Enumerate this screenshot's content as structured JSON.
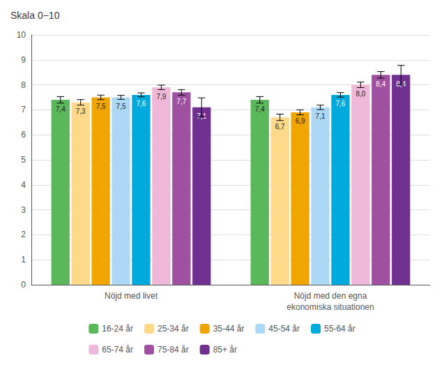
{
  "chart_data": {
    "type": "bar",
    "title": "Skala 0−10",
    "categories": [
      "Nöjd med livet",
      "Nöjd med den egna\nekonomiska situationen"
    ],
    "series": [
      {
        "name": "16-24 år",
        "color": "#5ab85a",
        "values": [
          7.4,
          7.4
        ],
        "errors": [
          0.13,
          0.13
        ],
        "value_labels": [
          "7,4",
          "7,4"
        ]
      },
      {
        "name": "25-34 år",
        "color": "#ffd98a",
        "values": [
          7.3,
          6.7
        ],
        "errors": [
          0.11,
          0.13
        ],
        "value_labels": [
          "7,3",
          "6,7"
        ]
      },
      {
        "name": "35-44 år",
        "color": "#f0a500",
        "values": [
          7.5,
          6.9
        ],
        "errors": [
          0.09,
          0.1
        ],
        "value_labels": [
          "7,5",
          "6,9"
        ]
      },
      {
        "name": "45-54 år",
        "color": "#add8f5",
        "values": [
          7.5,
          7.1
        ],
        "errors": [
          0.08,
          0.09
        ],
        "value_labels": [
          "7,5",
          "7,1"
        ]
      },
      {
        "name": "55-64 år",
        "color": "#00aadd",
        "values": [
          7.6,
          7.6
        ],
        "errors": [
          0.08,
          0.09
        ],
        "value_labels": [
          "7,6",
          "7,6"
        ]
      },
      {
        "name": "65-74 år",
        "color": "#f0b8d8",
        "values": [
          7.9,
          8.0
        ],
        "errors": [
          0.09,
          0.11
        ],
        "value_labels": [
          "7,9",
          "8,0"
        ]
      },
      {
        "name": "75-84 år",
        "color": "#a050a0",
        "values": [
          7.7,
          8.4
        ],
        "errors": [
          0.11,
          0.13
        ],
        "value_labels": [
          "7,7",
          "8,4"
        ]
      },
      {
        "name": "85+ år",
        "color": "#703090",
        "values": [
          7.1,
          8.4
        ],
        "errors": [
          0.38,
          0.38
        ],
        "value_labels": [
          "7,1",
          "8,4"
        ]
      }
    ],
    "data_labels": true,
    "ylim": [
      0,
      10
    ],
    "yticks": [
      0,
      1,
      2,
      3,
      4,
      5,
      6,
      7,
      8,
      9,
      10
    ],
    "grid": true,
    "legend": "bottom"
  }
}
